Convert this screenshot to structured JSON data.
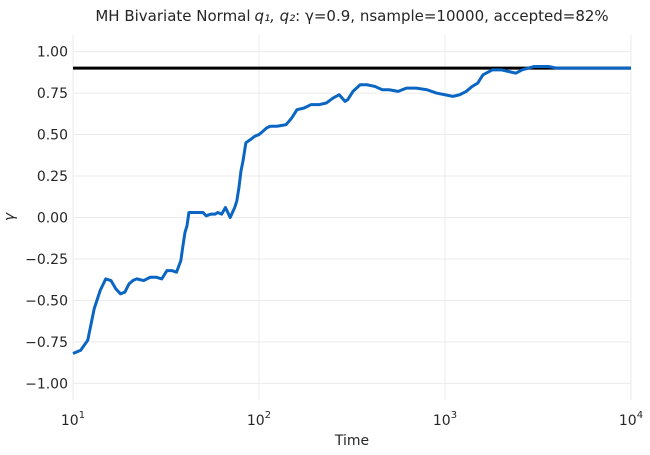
{
  "chart_data": {
    "type": "line",
    "title": "MH Bivariate Normal",
    "title_math": "q₁, q₂",
    "title_rest": ": γ=0.9, nsample=10000, accepted=82%",
    "xlabel": "Time",
    "ylabel": "γ",
    "xscale": "log",
    "xlim": [
      10,
      10000
    ],
    "ylim": [
      -1.1,
      1.1
    ],
    "x_ticks": [
      {
        "base": "10",
        "exp": "1",
        "value": 10
      },
      {
        "base": "10",
        "exp": "2",
        "value": 100
      },
      {
        "base": "10",
        "exp": "3",
        "value": 1000
      },
      {
        "base": "10",
        "exp": "4",
        "value": 10000
      }
    ],
    "y_ticks": [
      "1.00",
      "0.75",
      "0.50",
      "0.25",
      "0.00",
      "−0.25",
      "−0.50",
      "−0.75",
      "−1.00"
    ],
    "y_tick_values": [
      1.0,
      0.75,
      0.5,
      0.25,
      0.0,
      -0.25,
      -0.5,
      -0.75,
      -1.0
    ],
    "grid": true,
    "reference_line": {
      "y": 0.9,
      "color": "#000000"
    },
    "series": [
      {
        "color": "#0a66c2",
        "x": [
          10,
          11,
          12,
          13,
          14,
          15,
          16,
          17,
          18,
          19,
          20,
          21,
          22,
          24,
          26,
          28,
          30,
          32,
          34,
          36,
          38,
          39,
          40,
          41,
          42,
          44,
          46,
          48,
          50,
          52,
          55,
          58,
          60,
          63,
          66,
          68,
          70,
          72,
          74,
          76,
          78,
          80,
          82,
          85,
          90,
          95,
          100,
          105,
          110,
          115,
          125,
          140,
          150,
          160,
          175,
          190,
          210,
          230,
          250,
          270,
          290,
          300,
          320,
          350,
          380,
          420,
          460,
          500,
          560,
          620,
          700,
          800,
          900,
          1000,
          1100,
          1200,
          1300,
          1400,
          1500,
          1600,
          1800,
          2000,
          2200,
          2400,
          2600,
          2800,
          3000,
          3300,
          3600,
          4000,
          4500,
          5000,
          6000,
          7000,
          8000,
          9000,
          10000
        ],
        "y": [
          -0.82,
          -0.8,
          -0.74,
          -0.55,
          -0.44,
          -0.37,
          -0.38,
          -0.43,
          -0.46,
          -0.45,
          -0.4,
          -0.38,
          -0.37,
          -0.38,
          -0.36,
          -0.36,
          -0.37,
          -0.32,
          -0.32,
          -0.33,
          -0.26,
          -0.17,
          -0.09,
          -0.05,
          0.03,
          0.03,
          0.03,
          0.03,
          0.03,
          0.01,
          0.02,
          0.02,
          0.03,
          0.02,
          0.06,
          0.03,
          0.0,
          0.03,
          0.06,
          0.1,
          0.18,
          0.28,
          0.34,
          0.45,
          0.47,
          0.49,
          0.5,
          0.52,
          0.54,
          0.55,
          0.55,
          0.56,
          0.6,
          0.65,
          0.66,
          0.68,
          0.68,
          0.69,
          0.72,
          0.74,
          0.7,
          0.71,
          0.76,
          0.8,
          0.8,
          0.79,
          0.77,
          0.77,
          0.76,
          0.78,
          0.78,
          0.77,
          0.75,
          0.74,
          0.73,
          0.74,
          0.76,
          0.79,
          0.81,
          0.86,
          0.89,
          0.89,
          0.88,
          0.87,
          0.89,
          0.9,
          0.91,
          0.91,
          0.91,
          0.9,
          0.9,
          0.9,
          0.9,
          0.9,
          0.9,
          0.9,
          0.9
        ]
      }
    ]
  }
}
